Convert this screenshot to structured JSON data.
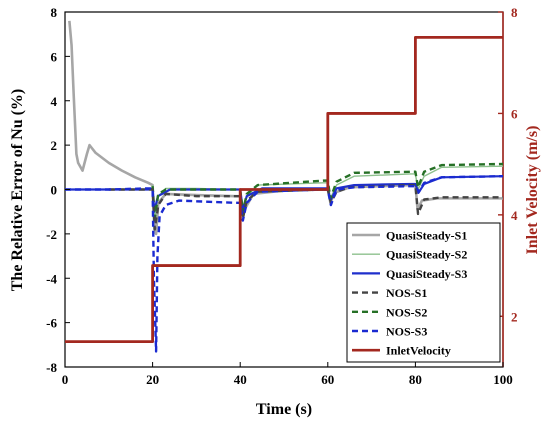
{
  "chart_data": {
    "type": "line",
    "xlabel": "Time (s)",
    "ylabel_left": "The Relative Error of  Nu (%)",
    "ylabel_right": "Inlet Velocity (m/s)",
    "xlim": [
      0,
      100
    ],
    "ylim_left": [
      -8,
      8
    ],
    "ylim_right": [
      1,
      8
    ],
    "x_ticks": [
      0,
      20,
      40,
      60,
      80,
      100
    ],
    "y_ticks_left": [
      -8,
      -6,
      -4,
      -2,
      0,
      2,
      4,
      6,
      8
    ],
    "y_ticks_right": [
      2,
      4,
      6,
      8
    ],
    "legend": "bottom-right",
    "grid": false,
    "colors": {
      "QuasiSteady-S1": "#a6a6a6",
      "QuasiSteady-S2": "#8dc08d",
      "QuasiSteady-S3": "#1f2fcc",
      "NOS-S1": "#444444",
      "NOS-S2": "#267026",
      "NOS-S3": "#1a2ad1",
      "InletVelocity": "#a3281f",
      "right_axis": "#a3281f"
    },
    "series": [
      {
        "name": "QuasiSteady-S1",
        "axis": "left",
        "style": "solid",
        "width": 2.6,
        "points": [
          [
            1,
            7.6
          ],
          [
            1.5,
            6.5
          ],
          [
            2,
            4.2
          ],
          [
            2.6,
            1.6
          ],
          [
            3,
            1.2
          ],
          [
            4,
            0.85
          ],
          [
            5,
            1.6
          ],
          [
            5.6,
            2.0
          ],
          [
            7,
            1.65
          ],
          [
            10,
            1.2
          ],
          [
            13,
            0.85
          ],
          [
            16,
            0.55
          ],
          [
            19,
            0.3
          ],
          [
            20,
            0.2
          ],
          [
            20.4,
            -1.8
          ],
          [
            20.8,
            -2.0
          ],
          [
            21.3,
            -0.6
          ],
          [
            23,
            -0.2
          ],
          [
            30,
            -0.25
          ],
          [
            39,
            -0.3
          ],
          [
            40,
            -0.3
          ],
          [
            40.6,
            -1.3
          ],
          [
            41,
            -0.9
          ],
          [
            43,
            -0.2
          ],
          [
            50,
            -0.05
          ],
          [
            59,
            0.0
          ],
          [
            60,
            0.0
          ],
          [
            60.6,
            -0.6
          ],
          [
            61.5,
            -0.15
          ],
          [
            65,
            0.1
          ],
          [
            79,
            0.2
          ],
          [
            80,
            0.2
          ],
          [
            80.5,
            -0.9
          ],
          [
            81.5,
            -0.5
          ],
          [
            85,
            -0.4
          ],
          [
            100,
            -0.4
          ]
        ]
      },
      {
        "name": "QuasiSteady-S2",
        "axis": "left",
        "style": "solid",
        "width": 1.4,
        "points": [
          [
            20,
            0.2
          ],
          [
            20.5,
            -1.3
          ],
          [
            21.3,
            -0.3
          ],
          [
            23,
            0.05
          ],
          [
            30,
            0.05
          ],
          [
            39,
            0.0
          ],
          [
            40,
            0.0
          ],
          [
            40.6,
            -1.0
          ],
          [
            41.5,
            -0.3
          ],
          [
            44,
            0.2
          ],
          [
            59,
            0.3
          ],
          [
            60,
            0.3
          ],
          [
            60.6,
            -0.4
          ],
          [
            62,
            0.2
          ],
          [
            66,
            0.6
          ],
          [
            79,
            0.7
          ],
          [
            80,
            0.7
          ],
          [
            80.6,
            0.0
          ],
          [
            82,
            0.6
          ],
          [
            86,
            1.0
          ],
          [
            100,
            1.05
          ]
        ]
      },
      {
        "name": "QuasiSteady-S3",
        "axis": "left",
        "style": "solid",
        "width": 2.2,
        "points": [
          [
            0,
            0.0
          ],
          [
            19,
            0.0
          ],
          [
            20,
            0.05
          ],
          [
            20.4,
            -1.0
          ],
          [
            21.2,
            -0.3
          ],
          [
            24,
            0.0
          ],
          [
            39,
            0.0
          ],
          [
            40,
            0.0
          ],
          [
            40.6,
            -0.9
          ],
          [
            41.5,
            -0.3
          ],
          [
            45,
            0.05
          ],
          [
            59,
            0.05
          ],
          [
            60,
            0.05
          ],
          [
            60.6,
            -0.5
          ],
          [
            62,
            0.05
          ],
          [
            66,
            0.2
          ],
          [
            79,
            0.25
          ],
          [
            80,
            0.25
          ],
          [
            80.7,
            -0.15
          ],
          [
            82,
            0.25
          ],
          [
            86,
            0.55
          ],
          [
            100,
            0.6
          ]
        ]
      },
      {
        "name": "NOS-S1",
        "axis": "left",
        "style": "dash",
        "width": 2.4,
        "points": [
          [
            10,
            0.0
          ],
          [
            19,
            0.0
          ],
          [
            20,
            0.0
          ],
          [
            20.5,
            -1.8
          ],
          [
            21.3,
            -0.7
          ],
          [
            23,
            -0.2
          ],
          [
            30,
            -0.3
          ],
          [
            39,
            -0.3
          ],
          [
            40,
            -0.3
          ],
          [
            40.6,
            -1.3
          ],
          [
            41.5,
            -0.5
          ],
          [
            44,
            -0.1
          ],
          [
            59,
            0.0
          ],
          [
            60,
            0.0
          ],
          [
            60.7,
            -0.6
          ],
          [
            62,
            -0.1
          ],
          [
            65,
            0.1
          ],
          [
            79,
            0.2
          ],
          [
            80,
            0.2
          ],
          [
            80.6,
            -1.1
          ],
          [
            82,
            -0.45
          ],
          [
            86,
            -0.35
          ],
          [
            100,
            -0.35
          ]
        ]
      },
      {
        "name": "NOS-S2",
        "axis": "left",
        "style": "dash",
        "width": 2.4,
        "points": [
          [
            20,
            0.15
          ],
          [
            20.5,
            -1.3
          ],
          [
            21.3,
            -0.2
          ],
          [
            23,
            0.0
          ],
          [
            39,
            0.0
          ],
          [
            40,
            0.0
          ],
          [
            40.6,
            -1.0
          ],
          [
            41.5,
            -0.2
          ],
          [
            44,
            0.2
          ],
          [
            59,
            0.4
          ],
          [
            60,
            0.4
          ],
          [
            60.6,
            -0.4
          ],
          [
            62,
            0.35
          ],
          [
            66,
            0.75
          ],
          [
            79,
            0.8
          ],
          [
            80,
            0.8
          ],
          [
            80.6,
            0.1
          ],
          [
            82,
            0.8
          ],
          [
            86,
            1.1
          ],
          [
            100,
            1.15
          ]
        ]
      },
      {
        "name": "NOS-S3",
        "axis": "left",
        "style": "dash",
        "width": 2.4,
        "points": [
          [
            0,
            0.0
          ],
          [
            10,
            0.0
          ],
          [
            19,
            0.05
          ],
          [
            20,
            0.05
          ],
          [
            20.3,
            -4.0
          ],
          [
            20.8,
            -7.3
          ],
          [
            21.1,
            -3.0
          ],
          [
            21.6,
            -1.2
          ],
          [
            23,
            -0.7
          ],
          [
            26,
            -0.5
          ],
          [
            39,
            -0.6
          ],
          [
            40,
            -0.6
          ],
          [
            40.6,
            -1.4
          ],
          [
            41.5,
            -0.6
          ],
          [
            44,
            -0.1
          ],
          [
            59,
            0.0
          ],
          [
            60,
            0.0
          ],
          [
            60.7,
            -0.7
          ],
          [
            62,
            0.0
          ],
          [
            66,
            0.1
          ],
          [
            79,
            0.15
          ],
          [
            80,
            0.15
          ],
          [
            80.8,
            -0.1
          ],
          [
            82,
            0.3
          ],
          [
            86,
            0.55
          ],
          [
            100,
            0.6
          ]
        ]
      },
      {
        "name": "InletVelocity",
        "axis": "right",
        "style": "step",
        "width": 2.8,
        "points": [
          [
            0,
            1.5
          ],
          [
            20,
            1.5
          ],
          [
            20,
            3.0
          ],
          [
            40,
            3.0
          ],
          [
            40,
            4.5
          ],
          [
            60,
            4.5
          ],
          [
            60,
            6.0
          ],
          [
            80,
            6.0
          ],
          [
            80,
            7.5
          ],
          [
            100,
            7.5
          ]
        ]
      }
    ]
  }
}
